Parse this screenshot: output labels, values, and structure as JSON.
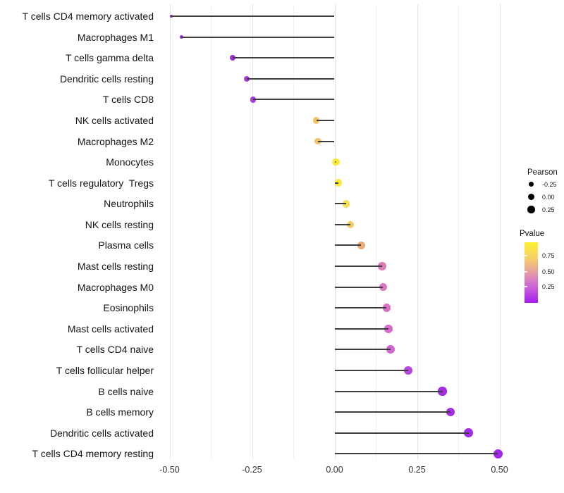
{
  "chart_data": {
    "type": "lollipop",
    "orientation": "horizontal",
    "title": "",
    "xlabel": "",
    "ylabel": "",
    "x_axis": {
      "tick_labels": [
        "-0.50",
        "-0.25",
        "0.00",
        "0.25",
        "0.50"
      ],
      "tick_values": [
        -0.5,
        -0.25,
        0,
        0.25,
        0.5
      ],
      "minor_step": 0.125,
      "range": [
        -0.545,
        0.547
      ],
      "grid": "vertical-only"
    },
    "points": [
      {
        "label": "T cells CD4 memory activated",
        "pearson": -0.495,
        "pvalue_approx": 0.1,
        "color": "#8A25C0",
        "diameter": 3.5
      },
      {
        "label": "Macrophages M1",
        "pearson": -0.463,
        "pvalue_approx": 0.1,
        "color": "#9228CC",
        "diameter": 5
      },
      {
        "label": "T cells gamma delta",
        "pearson": -0.309,
        "pvalue_approx": 0.12,
        "color": "#9C30D6",
        "diameter": 8
      },
      {
        "label": "Dendritic cells resting",
        "pearson": -0.266,
        "pvalue_approx": 0.14,
        "color": "#A43ADC",
        "diameter": 8.5
      },
      {
        "label": "T cells CD8",
        "pearson": -0.247,
        "pvalue_approx": 0.14,
        "color": "#A93BE0",
        "diameter": 8.7
      },
      {
        "label": "NK cells activated",
        "pearson": -0.055,
        "pvalue_approx": 0.65,
        "color": "#EFC369",
        "diameter": 9.3
      },
      {
        "label": "Macrophages M2",
        "pearson": -0.05,
        "pvalue_approx": 0.65,
        "color": "#EFC369",
        "diameter": 9.3
      },
      {
        "label": "Monocytes",
        "pearson": 0.004,
        "pvalue_approx": 0.95,
        "color": "#FDE93A",
        "diameter": 10.3
      },
      {
        "label": "T cells regulatory  Tregs",
        "pearson": 0.012,
        "pvalue_approx": 0.92,
        "color": "#FDE93A",
        "diameter": 10.4
      },
      {
        "label": "Neutrophils",
        "pearson": 0.035,
        "pvalue_approx": 0.8,
        "color": "#F8DC5C",
        "diameter": 10.7
      },
      {
        "label": "NK cells resting",
        "pearson": 0.048,
        "pvalue_approx": 0.72,
        "color": "#F4CC66",
        "diameter": 10.7
      },
      {
        "label": "Plasma cells",
        "pearson": 0.081,
        "pvalue_approx": 0.55,
        "color": "#E9A878",
        "diameter": 11
      },
      {
        "label": "Mast cells resting",
        "pearson": 0.144,
        "pvalue_approx": 0.4,
        "color": "#DA7DB5",
        "diameter": 11.4
      },
      {
        "label": "Macrophages M0",
        "pearson": 0.147,
        "pvalue_approx": 0.38,
        "color": "#D877BC",
        "diameter": 11.4
      },
      {
        "label": "Eosinophils",
        "pearson": 0.158,
        "pvalue_approx": 0.35,
        "color": "#D76FC5",
        "diameter": 11.6
      },
      {
        "label": "Mast cells activated",
        "pearson": 0.163,
        "pvalue_approx": 0.33,
        "color": "#D56CC9",
        "diameter": 11.6
      },
      {
        "label": "T cells CD4 naive",
        "pearson": 0.17,
        "pvalue_approx": 0.3,
        "color": "#D166D0",
        "diameter": 11.8
      },
      {
        "label": "T cells follicular helper",
        "pearson": 0.224,
        "pvalue_approx": 0.15,
        "color": "#B747E2",
        "diameter": 12.3
      },
      {
        "label": "B cells naive",
        "pearson": 0.327,
        "pvalue_approx": 0.08,
        "color": "#A32BE2",
        "diameter": 12.3
      },
      {
        "label": "B cells memory",
        "pearson": 0.352,
        "pvalue_approx": 0.07,
        "color": "#A42BE8",
        "diameter": 12.4
      },
      {
        "label": "Dendritic cells activated",
        "pearson": 0.406,
        "pvalue_approx": 0.06,
        "color": "#A22BE6",
        "diameter": 12.6
      },
      {
        "label": "T cells CD4 memory resting",
        "pearson": 0.495,
        "pvalue_approx": 0.05,
        "color": "#A227E9",
        "diameter": 13
      }
    ],
    "legend_size": {
      "title": "Pearson",
      "dot_color": "#000000",
      "items": [
        {
          "label": "-0.25",
          "diameter": 7.3
        },
        {
          "label": "0.00",
          "diameter": 9
        },
        {
          "label": "0.25",
          "diameter": 10.3
        }
      ]
    },
    "legend_color": {
      "title": "Pvalue",
      "tick_labels": [
        "0.75",
        "0.50",
        "0.25"
      ],
      "gradient_stops": [
        {
          "pos": 0,
          "color": "#FBF02D"
        },
        {
          "pos": 12,
          "color": "#FAE24C"
        },
        {
          "pos": 25,
          "color": "#F6D163"
        },
        {
          "pos": 37,
          "color": "#EFB97F"
        },
        {
          "pos": 50,
          "color": "#E59CA5"
        },
        {
          "pos": 62,
          "color": "#D87EC2"
        },
        {
          "pos": 74,
          "color": "#CB63D7"
        },
        {
          "pos": 87,
          "color": "#B840E3"
        },
        {
          "pos": 100,
          "color": "#A51BEE"
        }
      ]
    },
    "style": {
      "background": "#FFFFFF",
      "stem_color": "#3D3D3D",
      "grid_major": "#E4E4E4",
      "grid_minor": "#F1F1F1",
      "axis_text_color": "#333333",
      "label_color": "#141414"
    }
  }
}
